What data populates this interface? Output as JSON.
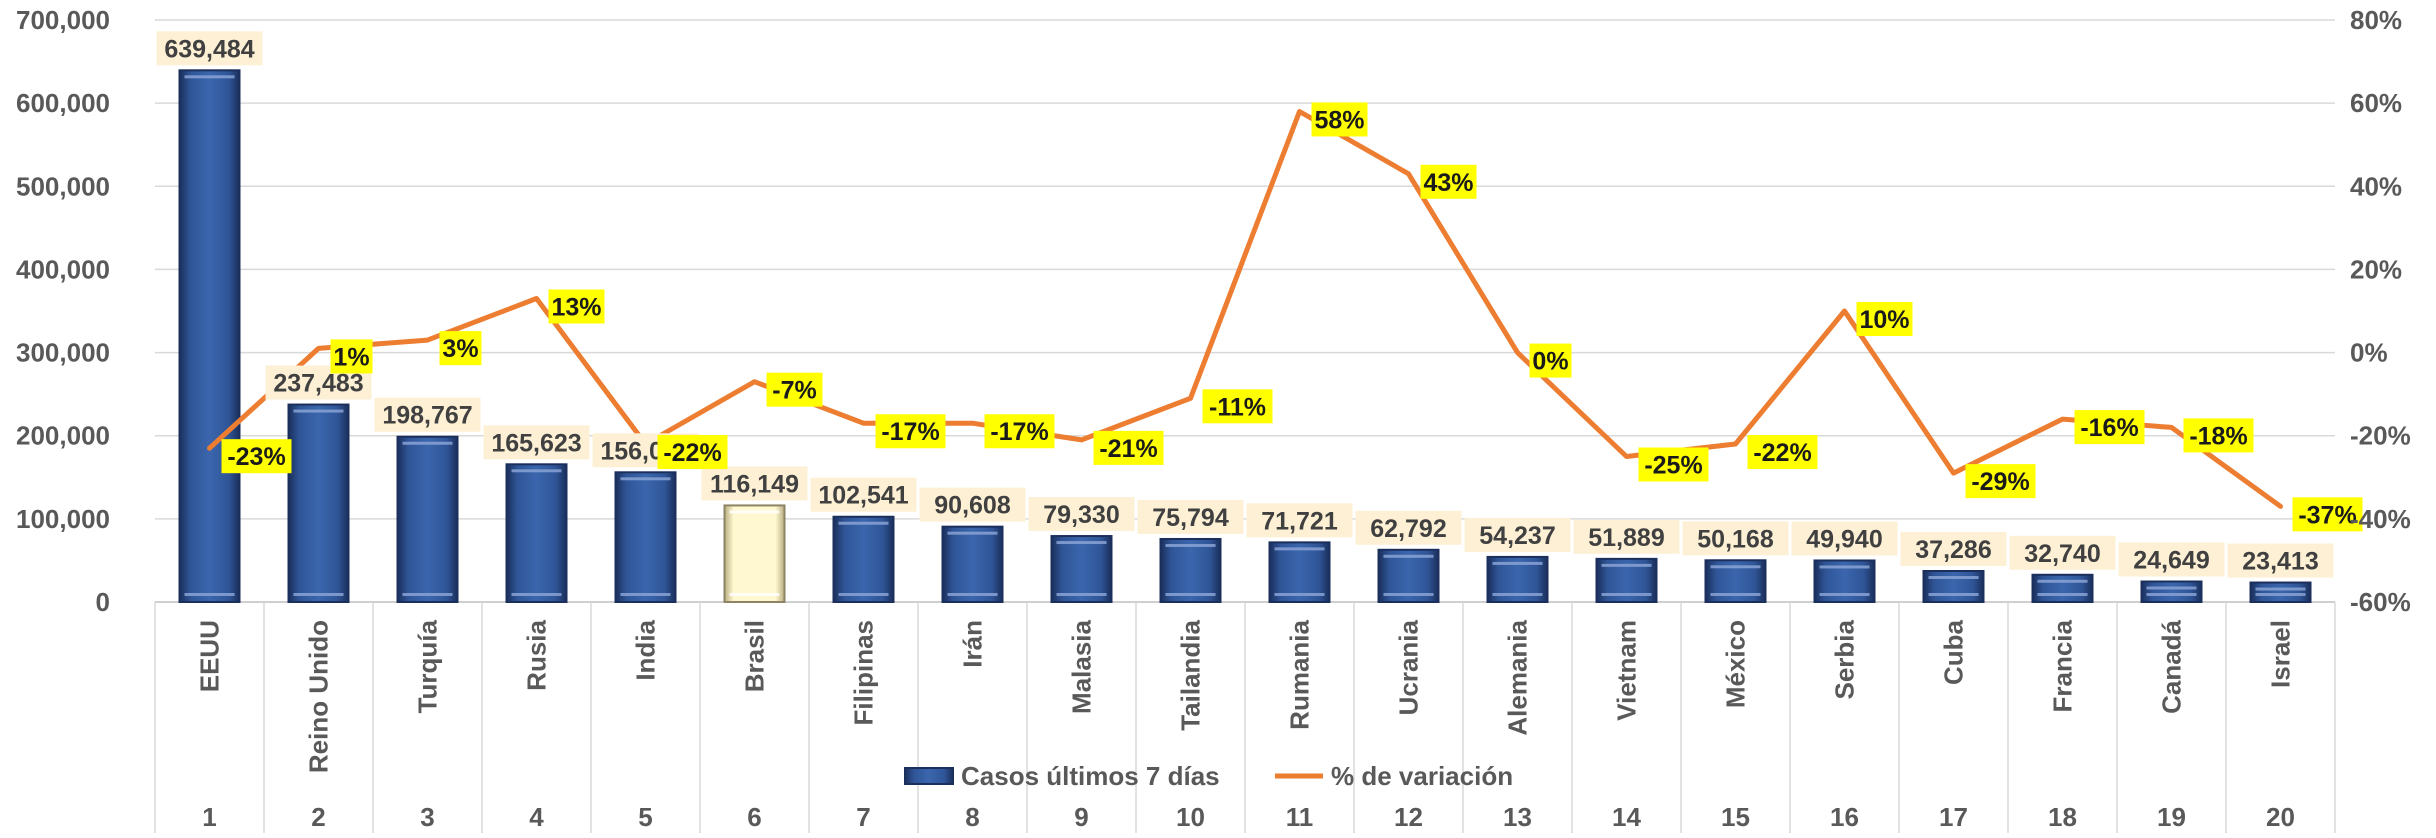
{
  "chart_data": {
    "type": "bar",
    "categories": [
      "EEUU",
      "Reino  Unido",
      "Turquía",
      "Rusia",
      "India",
      "Brasil",
      "Filipinas",
      "Irán",
      "Malasia",
      "Tailandia",
      "Rumania",
      "Ucrania",
      "Alemania",
      "Vietnam",
      "México",
      "Serbia",
      "Cuba",
      "Francia",
      "Canadá",
      "Israel"
    ],
    "ranks": [
      "1",
      "2",
      "3",
      "4",
      "5",
      "6",
      "7",
      "8",
      "9",
      "10",
      "11",
      "12",
      "13",
      "14",
      "15",
      "16",
      "17",
      "18",
      "19",
      "20"
    ],
    "series": [
      {
        "name": "Casos últimos 7 días",
        "type": "bar",
        "axis": "left",
        "values": [
          639484,
          237483,
          198767,
          165623,
          156000,
          116149,
          102541,
          90608,
          79330,
          75794,
          71721,
          62792,
          54237,
          51889,
          50168,
          49940,
          37286,
          32740,
          24649,
          23413
        ],
        "labels": [
          "639,484",
          "237,483",
          "198,767",
          "165,623",
          "156,000",
          "116,149",
          "102,541",
          "90,608",
          "79,330",
          "75,794",
          "71,721",
          "62,792",
          "54,237",
          "51,889",
          "50,168",
          "49,940",
          "37,286",
          "32,740",
          "24,649",
          "23,413"
        ],
        "color": "#2f5597",
        "highlight_index": 5,
        "highlight_color": "#fff5c2"
      },
      {
        "name": "% de variación",
        "type": "line",
        "axis": "right",
        "values": [
          -23,
          1,
          3,
          13,
          -22,
          -7,
          -17,
          -17,
          -21,
          -11,
          58,
          43,
          0,
          -25,
          -22,
          10,
          -29,
          -16,
          -18,
          -37
        ],
        "labels": [
          "-23%",
          "1%",
          "3%",
          "13%",
          "-22%",
          "-7%",
          "-17%",
          "-17%",
          "-21%",
          "-11%",
          "58%",
          "43%",
          "0%",
          "-25%",
          "-22%",
          "10%",
          "-29%",
          "-16%",
          "-18%",
          "-37%"
        ],
        "color": "#ed7d31",
        "label_bg": "#ffff00"
      }
    ],
    "y_left": {
      "min": 0,
      "max": 700000,
      "ticks": [
        0,
        100000,
        200000,
        300000,
        400000,
        500000,
        600000,
        700000
      ],
      "tick_labels": [
        "0",
        "100,000",
        "200,000",
        "300,000",
        "400,000",
        "500,000",
        "600,000",
        "700,000"
      ]
    },
    "y_right": {
      "min": -60,
      "max": 80,
      "ticks": [
        -60,
        -40,
        -20,
        0,
        20,
        40,
        60,
        80
      ],
      "tick_labels": [
        "-60%",
        "-40%",
        "-20%",
        "0%",
        "20%",
        "40%",
        "60%",
        "80%"
      ]
    },
    "grid": true,
    "legend": "bottom-center",
    "bar_label_bg": "#fdf0d5"
  }
}
